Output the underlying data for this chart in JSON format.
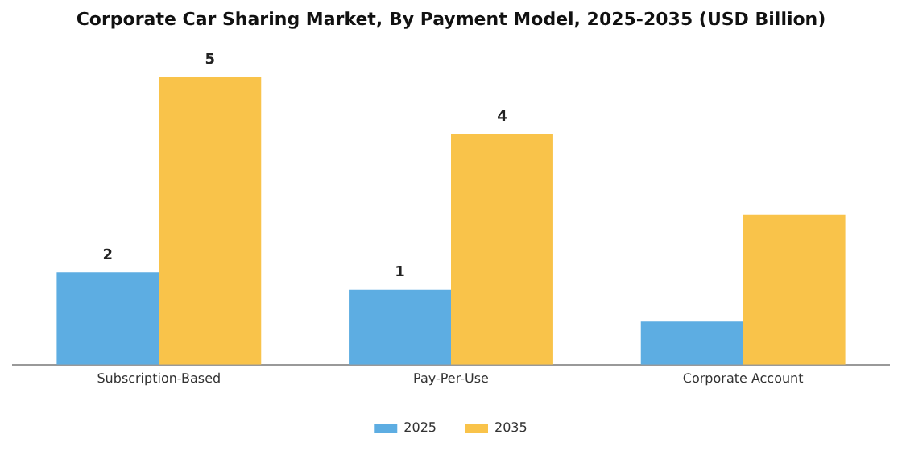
{
  "chart_data": {
    "type": "bar",
    "title": "Corporate Car Sharing Market, By Payment Model, 2025-2035 (USD Billion)",
    "categories": [
      "Subscription-Based",
      "Pay-Per-Use",
      "Corporate Account"
    ],
    "tick_labels": "x",
    "legend": "bottom",
    "grid": false,
    "series": [
      {
        "name": "2025",
        "color": "#5dade2",
        "values": [
          1.6,
          1.3,
          0.75
        ],
        "value_labels": [
          "2",
          "1",
          null
        ]
      },
      {
        "name": "2035",
        "color": "#f9c34a",
        "values": [
          5.0,
          4.0,
          2.6
        ],
        "value_labels": [
          "5",
          "4",
          null
        ]
      }
    ]
  }
}
